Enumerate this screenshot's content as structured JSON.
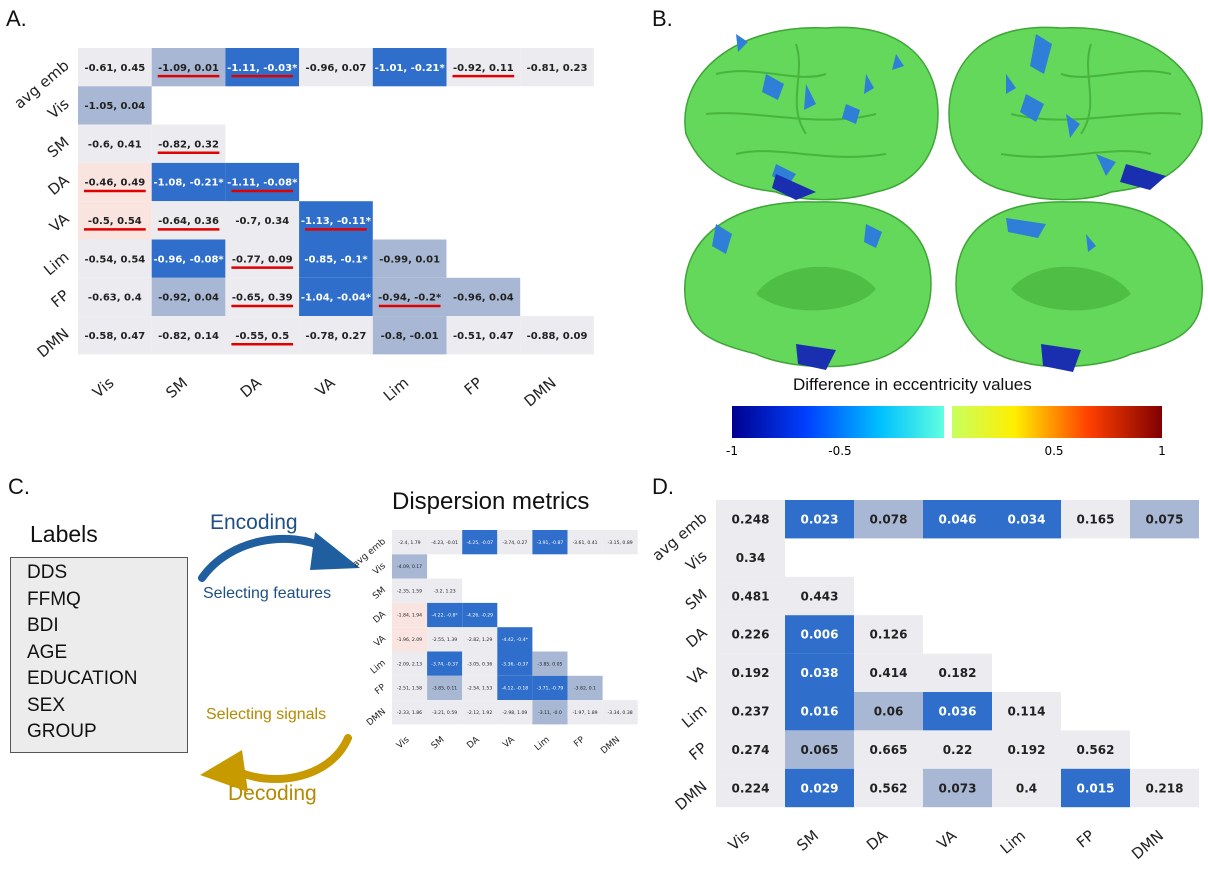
{
  "panels": {
    "a": "A.",
    "b": "B.",
    "c": "C.",
    "d": "D."
  },
  "colors": {
    "strong": "#2f6fcb",
    "medium": "#a8b8d4",
    "light": "#ecebf0",
    "pink": "#f9e4e0",
    "underline": "#e00000",
    "brain": "#66dd55"
  },
  "chart_data": [
    {
      "id": "A",
      "type": "heatmap",
      "title": "",
      "row_labels": [
        "avg emb",
        "Vis",
        "SM",
        "DA",
        "VA",
        "Lim",
        "FP",
        "DMN"
      ],
      "col_labels": [
        "Vis",
        "SM",
        "DA",
        "VA",
        "Lim",
        "FP",
        "DMN"
      ],
      "rows": [
        [
          {
            "t": "-0.61, 0.45",
            "s": "light"
          },
          {
            "t": "-1.09, 0.01",
            "s": "medium",
            "u": true
          },
          {
            "t": "-1.11, -0.03*",
            "s": "strong",
            "u": true
          },
          {
            "t": "-0.96, 0.07",
            "s": "light"
          },
          {
            "t": "-1.01, -0.21*",
            "s": "strong"
          },
          {
            "t": "-0.92, 0.11",
            "s": "light",
            "u": true
          },
          {
            "t": "-0.81, 0.23",
            "s": "light"
          }
        ],
        [
          {
            "t": "-1.05, 0.04",
            "s": "medium"
          }
        ],
        [
          {
            "t": "-0.6, 0.41",
            "s": "light"
          },
          {
            "t": "-0.82, 0.32",
            "s": "light",
            "u": true
          }
        ],
        [
          {
            "t": "-0.46, 0.49",
            "s": "pink",
            "u": true
          },
          {
            "t": "-1.08, -0.21*",
            "s": "strong"
          },
          {
            "t": "-1.11, -0.08*",
            "s": "strong",
            "u": true
          }
        ],
        [
          {
            "t": "-0.5, 0.54",
            "s": "pink",
            "u": true
          },
          {
            "t": "-0.64, 0.36",
            "s": "light",
            "u": true
          },
          {
            "t": "-0.7, 0.34",
            "s": "light"
          },
          {
            "t": "-1.13, -0.11*",
            "s": "strong",
            "u": true
          }
        ],
        [
          {
            "t": "-0.54, 0.54",
            "s": "light"
          },
          {
            "t": "-0.96, -0.08*",
            "s": "strong"
          },
          {
            "t": "-0.77, 0.09",
            "s": "light",
            "u": true
          },
          {
            "t": "-0.85, -0.1*",
            "s": "strong"
          },
          {
            "t": "-0.99, 0.01",
            "s": "medium"
          }
        ],
        [
          {
            "t": "-0.63, 0.4",
            "s": "light"
          },
          {
            "t": "-0.92, 0.04",
            "s": "medium"
          },
          {
            "t": "-0.65, 0.39",
            "s": "light",
            "u": true
          },
          {
            "t": "-1.04, -0.04*",
            "s": "strong"
          },
          {
            "t": "-0.94, -0.2*",
            "s": "medium",
            "u": true
          },
          {
            "t": "-0.96, 0.04",
            "s": "medium"
          }
        ],
        [
          {
            "t": "-0.58, 0.47",
            "s": "light"
          },
          {
            "t": "-0.82, 0.14",
            "s": "light"
          },
          {
            "t": "-0.55, 0.5",
            "s": "light",
            "u": true
          },
          {
            "t": "-0.78, 0.27",
            "s": "light"
          },
          {
            "t": "-0.8, -0.01",
            "s": "medium"
          },
          {
            "t": "-0.51, 0.47",
            "s": "light"
          },
          {
            "t": "-0.88, 0.09",
            "s": "light"
          }
        ]
      ]
    },
    {
      "id": "B",
      "type": "other",
      "colorbar": {
        "title": "Difference in eccentricity values",
        "ticks": [
          "-1",
          "-0.5",
          "0.5",
          "1"
        ],
        "min": -1,
        "max": 1
      }
    },
    {
      "id": "C",
      "type": "heatmap",
      "title": "Dispersion metrics",
      "row_labels": [
        "avg emb",
        "Vis",
        "SM",
        "DA",
        "VA",
        "Lim",
        "FP",
        "DMN"
      ],
      "col_labels": [
        "Vis",
        "SM",
        "DA",
        "VA",
        "Lim",
        "FP",
        "DMN"
      ],
      "rows": [
        [
          {
            "t": "-2.4, 1.79",
            "s": "light"
          },
          {
            "t": "-4.23, -0.01",
            "s": "light"
          },
          {
            "t": "-4.25, -0.07",
            "s": "strong"
          },
          {
            "t": "-3.74, 0.27",
            "s": "light"
          },
          {
            "t": "-3.91, -0.87",
            "s": "strong"
          },
          {
            "t": "-3.61, 0.41",
            "s": "light"
          },
          {
            "t": "-3.15, 0.89",
            "s": "light"
          }
        ],
        [
          {
            "t": "-4.09, 0.17",
            "s": "medium"
          }
        ],
        [
          {
            "t": "-2.35, 1.59",
            "s": "light"
          },
          {
            "t": "-3.2, 1.23",
            "s": "light"
          }
        ],
        [
          {
            "t": "-1.84, 1.94",
            "s": "pink"
          },
          {
            "t": "-4.22, -0.8*",
            "s": "strong"
          },
          {
            "t": "-4.26, -0.29",
            "s": "strong"
          }
        ],
        [
          {
            "t": "-1.96, 2.09",
            "s": "pink"
          },
          {
            "t": "-2.55, 1.39",
            "s": "light"
          },
          {
            "t": "-2.82, 1.29",
            "s": "light"
          },
          {
            "t": "-4.42, -0.4*",
            "s": "strong"
          }
        ],
        [
          {
            "t": "-2.09, 2.13",
            "s": "light"
          },
          {
            "t": "-3.74, -0.37",
            "s": "strong"
          },
          {
            "t": "-3.05, 0.36",
            "s": "light"
          },
          {
            "t": "-3.36, -0.37",
            "s": "strong"
          },
          {
            "t": "-3.85, 0.05",
            "s": "medium"
          }
        ],
        [
          {
            "t": "-2.51, 1.58",
            "s": "light"
          },
          {
            "t": "-3.85, 0.11",
            "s": "medium"
          },
          {
            "t": "-2.54, 1.53",
            "s": "light"
          },
          {
            "t": "-4.12, -0.18",
            "s": "strong"
          },
          {
            "t": "-3.71, -0.79",
            "s": "strong"
          },
          {
            "t": "-3.82, 0.1",
            "s": "medium"
          }
        ],
        [
          {
            "t": "-2.33, 1.86",
            "s": "light"
          },
          {
            "t": "-3.21, 0.59",
            "s": "light"
          },
          {
            "t": "-2.12, 1.92",
            "s": "light"
          },
          {
            "t": "-2.98, 1.09",
            "s": "light"
          },
          {
            "t": "-3.11, -0.0",
            "s": "medium"
          },
          {
            "t": "-1.97, 1.89",
            "s": "light"
          },
          {
            "t": "-3.34, 0.38",
            "s": "light"
          }
        ]
      ]
    },
    {
      "id": "D",
      "type": "heatmap",
      "title": "",
      "row_labels": [
        "avg emb",
        "Vis",
        "SM",
        "DA",
        "VA",
        "Lim",
        "FP",
        "DMN"
      ],
      "col_labels": [
        "Vis",
        "SM",
        "DA",
        "VA",
        "Lim",
        "FP",
        "DMN"
      ],
      "rows": [
        [
          {
            "t": "0.248",
            "s": "light"
          },
          {
            "t": "0.023",
            "s": "strong"
          },
          {
            "t": "0.078",
            "s": "medium"
          },
          {
            "t": "0.046",
            "s": "strong"
          },
          {
            "t": "0.034",
            "s": "strong"
          },
          {
            "t": "0.165",
            "s": "light"
          },
          {
            "t": "0.075",
            "s": "medium"
          }
        ],
        [
          {
            "t": "0.34",
            "s": "light"
          }
        ],
        [
          {
            "t": "0.481",
            "s": "light"
          },
          {
            "t": "0.443",
            "s": "light"
          }
        ],
        [
          {
            "t": "0.226",
            "s": "light"
          },
          {
            "t": "0.006",
            "s": "strong"
          },
          {
            "t": "0.126",
            "s": "light"
          }
        ],
        [
          {
            "t": "0.192",
            "s": "light"
          },
          {
            "t": "0.038",
            "s": "strong"
          },
          {
            "t": "0.414",
            "s": "light"
          },
          {
            "t": "0.182",
            "s": "light"
          }
        ],
        [
          {
            "t": "0.237",
            "s": "light"
          },
          {
            "t": "0.016",
            "s": "strong"
          },
          {
            "t": "0.06",
            "s": "medium"
          },
          {
            "t": "0.036",
            "s": "strong"
          },
          {
            "t": "0.114",
            "s": "light"
          }
        ],
        [
          {
            "t": "0.274",
            "s": "light"
          },
          {
            "t": "0.065",
            "s": "medium"
          },
          {
            "t": "0.665",
            "s": "light"
          },
          {
            "t": "0.22",
            "s": "light"
          },
          {
            "t": "0.192",
            "s": "light"
          },
          {
            "t": "0.562",
            "s": "light"
          }
        ],
        [
          {
            "t": "0.224",
            "s": "light"
          },
          {
            "t": "0.029",
            "s": "strong"
          },
          {
            "t": "0.562",
            "s": "light"
          },
          {
            "t": "0.073",
            "s": "medium"
          },
          {
            "t": "0.4",
            "s": "light"
          },
          {
            "t": "0.015",
            "s": "strong"
          },
          {
            "t": "0.218",
            "s": "light"
          }
        ]
      ]
    }
  ],
  "diagram_c": {
    "labels_title": "Labels",
    "labels": [
      "DDS",
      "FFMQ",
      "BDI",
      "AGE",
      "EDUCATION",
      "SEX",
      "GROUP"
    ],
    "encoding": "Encoding",
    "selecting_features": "Selecting features",
    "selecting_signals": "Selecting signals",
    "decoding": "Decoding",
    "dispersion_title": "Dispersion metrics"
  }
}
